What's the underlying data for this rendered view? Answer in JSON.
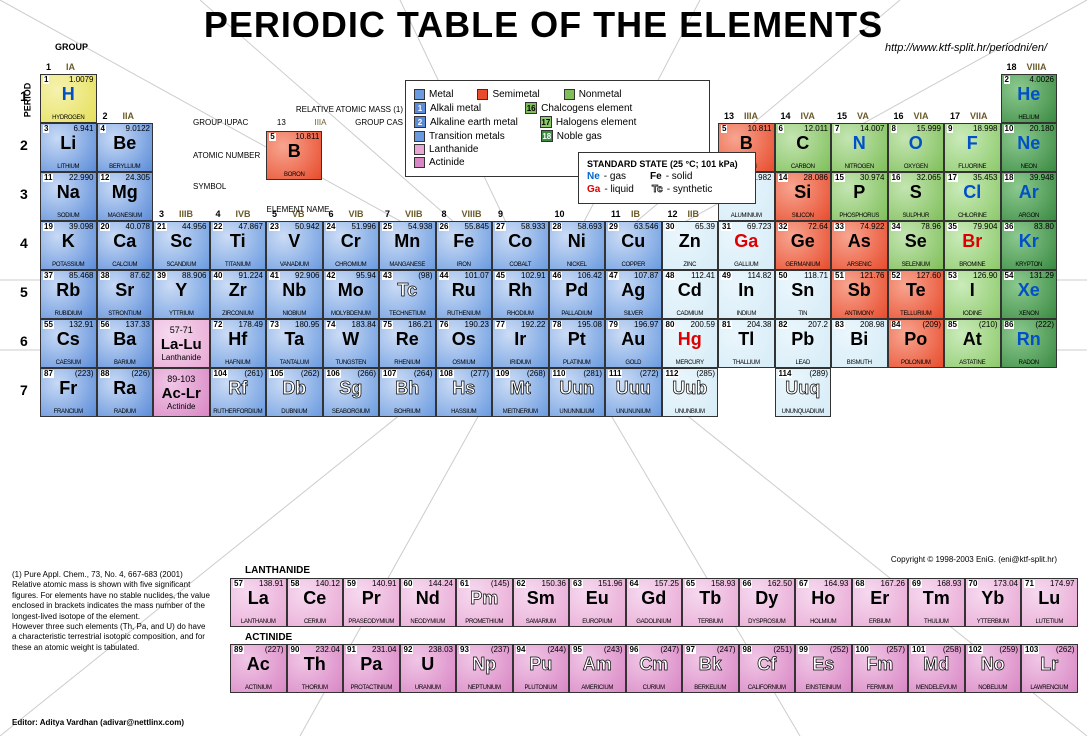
{
  "title": "PERIODIC TABLE OF THE ELEMENTS",
  "url": "http://www.ktf-split.hr/periodni/en/",
  "labels": {
    "group": "GROUP",
    "period": "PERIOD",
    "lanthanide_series": "LANTHANIDE",
    "actinide_series": "ACTINIDE",
    "relative_mass": "RELATIVE ATOMIC MASS (1)",
    "group_iupac": "GROUP IUPAC",
    "group_cas": "GROUP CAS",
    "atomic_number": "ATOMIC NUMBER",
    "symbol": "SYMBOL",
    "element_name": "ELEMENT NAME",
    "standard_state": "STANDARD STATE (25 °C; 101 kPa)",
    "gas": "- gas",
    "solid": "- solid",
    "liquid": "- liquid",
    "synthetic": "- synthetic"
  },
  "legend": {
    "metal": "Metal",
    "semimetal": "Semimetal",
    "nonmetal": "Nonmetal",
    "alkali": "Alkali metal",
    "alkaline": "Alkaline earth metal",
    "transition": "Transition metals",
    "chalcogens": "Chalcogens element",
    "halogens": "Halogens element",
    "noble": "Noble gas",
    "lanthanide": "Lanthanide",
    "actinide": "Actinide"
  },
  "state_samples": {
    "gas": "Ne",
    "solid": "Fe",
    "liquid": "Ga",
    "synth": "Tc"
  },
  "colors": {
    "alkali": "#5b8cd9",
    "alkali_light": "#a9c4ef",
    "transition": "#6a9be0",
    "transition_light": "#b8cef2",
    "post_transition": "#d6ecf7",
    "metalloid": "#e84c2d",
    "nonmetal": "#7fbf5a",
    "halogen": "#8cc96a",
    "noble": "#3a8a42",
    "lanth": "#e8a8d4",
    "act": "#d987c4",
    "hydrogen": "#e6e05a",
    "white": "#ffffff",
    "grid": "#cccccc"
  },
  "groups": [
    "IA",
    "IIA",
    "IIIB",
    "IVB",
    "VB",
    "VIB",
    "VIIB",
    "VIIIB",
    "",
    "",
    "IB",
    "IIB",
    "IIIA",
    "IVA",
    "VA",
    "VIA",
    "VIIA",
    "VIIIA"
  ],
  "cell_size": {
    "w": 56.5,
    "h": 49
  },
  "main_table": [
    {
      "n": 1,
      "m": "1.0079",
      "s": "H",
      "nm": "Hydrogen",
      "g": 1,
      "p": 1,
      "c": "hydrogen",
      "st": "g"
    },
    {
      "n": 2,
      "m": "4.0026",
      "s": "He",
      "nm": "Helium",
      "g": 18,
      "p": 1,
      "c": "noble",
      "st": "g"
    },
    {
      "n": 3,
      "m": "6.941",
      "s": "Li",
      "nm": "Lithium",
      "g": 1,
      "p": 2,
      "c": "alkali"
    },
    {
      "n": 4,
      "m": "9.0122",
      "s": "Be",
      "nm": "Beryllium",
      "g": 2,
      "p": 2,
      "c": "alkali"
    },
    {
      "n": 5,
      "m": "10.811",
      "s": "B",
      "nm": "Boron",
      "g": 13,
      "p": 2,
      "c": "metalloid"
    },
    {
      "n": 6,
      "m": "12.011",
      "s": "C",
      "nm": "Carbon",
      "g": 14,
      "p": 2,
      "c": "nonmetal"
    },
    {
      "n": 7,
      "m": "14.007",
      "s": "N",
      "nm": "Nitrogen",
      "g": 15,
      "p": 2,
      "c": "nonmetal",
      "st": "g"
    },
    {
      "n": 8,
      "m": "15.999",
      "s": "O",
      "nm": "Oxygen",
      "g": 16,
      "p": 2,
      "c": "nonmetal",
      "st": "g"
    },
    {
      "n": 9,
      "m": "18.998",
      "s": "F",
      "nm": "Fluorine",
      "g": 17,
      "p": 2,
      "c": "halogen",
      "st": "g"
    },
    {
      "n": 10,
      "m": "20.180",
      "s": "Ne",
      "nm": "Neon",
      "g": 18,
      "p": 2,
      "c": "noble",
      "st": "g"
    },
    {
      "n": 11,
      "m": "22.990",
      "s": "Na",
      "nm": "Sodium",
      "g": 1,
      "p": 3,
      "c": "alkali"
    },
    {
      "n": 12,
      "m": "24.305",
      "s": "Mg",
      "nm": "Magnesium",
      "g": 2,
      "p": 3,
      "c": "alkali"
    },
    {
      "n": 13,
      "m": "26.982",
      "s": "Al",
      "nm": "Aluminium",
      "g": 13,
      "p": 3,
      "c": "post_transition"
    },
    {
      "n": 14,
      "m": "28.086",
      "s": "Si",
      "nm": "Silicon",
      "g": 14,
      "p": 3,
      "c": "metalloid"
    },
    {
      "n": 15,
      "m": "30.974",
      "s": "P",
      "nm": "Phosphorus",
      "g": 15,
      "p": 3,
      "c": "nonmetal"
    },
    {
      "n": 16,
      "m": "32.065",
      "s": "S",
      "nm": "Sulphur",
      "g": 16,
      "p": 3,
      "c": "nonmetal"
    },
    {
      "n": 17,
      "m": "35.453",
      "s": "Cl",
      "nm": "Chlorine",
      "g": 17,
      "p": 3,
      "c": "halogen",
      "st": "g"
    },
    {
      "n": 18,
      "m": "39.948",
      "s": "Ar",
      "nm": "Argon",
      "g": 18,
      "p": 3,
      "c": "noble",
      "st": "g"
    },
    {
      "n": 19,
      "m": "39.098",
      "s": "K",
      "nm": "Potassium",
      "g": 1,
      "p": 4,
      "c": "alkali"
    },
    {
      "n": 20,
      "m": "40.078",
      "s": "Ca",
      "nm": "Calcium",
      "g": 2,
      "p": 4,
      "c": "alkali"
    },
    {
      "n": 21,
      "m": "44.956",
      "s": "Sc",
      "nm": "Scandium",
      "g": 3,
      "p": 4,
      "c": "transition"
    },
    {
      "n": 22,
      "m": "47.867",
      "s": "Ti",
      "nm": "Titanium",
      "g": 4,
      "p": 4,
      "c": "transition"
    },
    {
      "n": 23,
      "m": "50.942",
      "s": "V",
      "nm": "Vanadium",
      "g": 5,
      "p": 4,
      "c": "transition"
    },
    {
      "n": 24,
      "m": "51.996",
      "s": "Cr",
      "nm": "Chromium",
      "g": 6,
      "p": 4,
      "c": "transition"
    },
    {
      "n": 25,
      "m": "54.938",
      "s": "Mn",
      "nm": "Manganese",
      "g": 7,
      "p": 4,
      "c": "transition"
    },
    {
      "n": 26,
      "m": "55.845",
      "s": "Fe",
      "nm": "Iron",
      "g": 8,
      "p": 4,
      "c": "transition"
    },
    {
      "n": 27,
      "m": "58.933",
      "s": "Co",
      "nm": "Cobalt",
      "g": 9,
      "p": 4,
      "c": "transition"
    },
    {
      "n": 28,
      "m": "58.693",
      "s": "Ni",
      "nm": "Nickel",
      "g": 10,
      "p": 4,
      "c": "transition"
    },
    {
      "n": 29,
      "m": "63.546",
      "s": "Cu",
      "nm": "Copper",
      "g": 11,
      "p": 4,
      "c": "transition"
    },
    {
      "n": 30,
      "m": "65.39",
      "s": "Zn",
      "nm": "Zinc",
      "g": 12,
      "p": 4,
      "c": "post_transition"
    },
    {
      "n": 31,
      "m": "69.723",
      "s": "Ga",
      "nm": "Gallium",
      "g": 13,
      "p": 4,
      "c": "post_transition",
      "st": "l"
    },
    {
      "n": 32,
      "m": "72.64",
      "s": "Ge",
      "nm": "Germanium",
      "g": 14,
      "p": 4,
      "c": "metalloid"
    },
    {
      "n": 33,
      "m": "74.922",
      "s": "As",
      "nm": "Arsenic",
      "g": 15,
      "p": 4,
      "c": "metalloid"
    },
    {
      "n": 34,
      "m": "78.96",
      "s": "Se",
      "nm": "Selenium",
      "g": 16,
      "p": 4,
      "c": "nonmetal"
    },
    {
      "n": 35,
      "m": "79.904",
      "s": "Br",
      "nm": "Bromine",
      "g": 17,
      "p": 4,
      "c": "halogen",
      "st": "l"
    },
    {
      "n": 36,
      "m": "83.80",
      "s": "Kr",
      "nm": "Krypton",
      "g": 18,
      "p": 4,
      "c": "noble",
      "st": "g"
    },
    {
      "n": 37,
      "m": "85.468",
      "s": "Rb",
      "nm": "Rubidium",
      "g": 1,
      "p": 5,
      "c": "alkali"
    },
    {
      "n": 38,
      "m": "87.62",
      "s": "Sr",
      "nm": "Strontium",
      "g": 2,
      "p": 5,
      "c": "alkali"
    },
    {
      "n": 39,
      "m": "88.906",
      "s": "Y",
      "nm": "Yttrium",
      "g": 3,
      "p": 5,
      "c": "transition"
    },
    {
      "n": 40,
      "m": "91.224",
      "s": "Zr",
      "nm": "Zirconium",
      "g": 4,
      "p": 5,
      "c": "transition"
    },
    {
      "n": 41,
      "m": "92.906",
      "s": "Nb",
      "nm": "Niobium",
      "g": 5,
      "p": 5,
      "c": "transition"
    },
    {
      "n": 42,
      "m": "95.94",
      "s": "Mo",
      "nm": "Molybdenum",
      "g": 6,
      "p": 5,
      "c": "transition"
    },
    {
      "n": 43,
      "m": "(98)",
      "s": "Tc",
      "nm": "Technetium",
      "g": 7,
      "p": 5,
      "c": "transition",
      "st": "s"
    },
    {
      "n": 44,
      "m": "101.07",
      "s": "Ru",
      "nm": "Ruthenium",
      "g": 8,
      "p": 5,
      "c": "transition"
    },
    {
      "n": 45,
      "m": "102.91",
      "s": "Rh",
      "nm": "Rhodium",
      "g": 9,
      "p": 5,
      "c": "transition"
    },
    {
      "n": 46,
      "m": "106.42",
      "s": "Pd",
      "nm": "Palladium",
      "g": 10,
      "p": 5,
      "c": "transition"
    },
    {
      "n": 47,
      "m": "107.87",
      "s": "Ag",
      "nm": "Silver",
      "g": 11,
      "p": 5,
      "c": "transition"
    },
    {
      "n": 48,
      "m": "112.41",
      "s": "Cd",
      "nm": "Cadmium",
      "g": 12,
      "p": 5,
      "c": "post_transition"
    },
    {
      "n": 49,
      "m": "114.82",
      "s": "In",
      "nm": "Indium",
      "g": 13,
      "p": 5,
      "c": "post_transition"
    },
    {
      "n": 50,
      "m": "118.71",
      "s": "Sn",
      "nm": "Tin",
      "g": 14,
      "p": 5,
      "c": "post_transition"
    },
    {
      "n": 51,
      "m": "121.76",
      "s": "Sb",
      "nm": "Antimony",
      "g": 15,
      "p": 5,
      "c": "metalloid"
    },
    {
      "n": 52,
      "m": "127.60",
      "s": "Te",
      "nm": "Tellurium",
      "g": 16,
      "p": 5,
      "c": "metalloid"
    },
    {
      "n": 53,
      "m": "126.90",
      "s": "I",
      "nm": "Iodine",
      "g": 17,
      "p": 5,
      "c": "halogen"
    },
    {
      "n": 54,
      "m": "131.29",
      "s": "Xe",
      "nm": "Xenon",
      "g": 18,
      "p": 5,
      "c": "noble",
      "st": "g"
    },
    {
      "n": 55,
      "m": "132.91",
      "s": "Cs",
      "nm": "Caesium",
      "g": 1,
      "p": 6,
      "c": "alkali"
    },
    {
      "n": 56,
      "m": "137.33",
      "s": "Ba",
      "nm": "Barium",
      "g": 2,
      "p": 6,
      "c": "alkali"
    },
    {
      "n": 72,
      "m": "178.49",
      "s": "Hf",
      "nm": "Hafnium",
      "g": 4,
      "p": 6,
      "c": "transition"
    },
    {
      "n": 73,
      "m": "180.95",
      "s": "Ta",
      "nm": "Tantalum",
      "g": 5,
      "p": 6,
      "c": "transition"
    },
    {
      "n": 74,
      "m": "183.84",
      "s": "W",
      "nm": "Tungsten",
      "g": 6,
      "p": 6,
      "c": "transition"
    },
    {
      "n": 75,
      "m": "186.21",
      "s": "Re",
      "nm": "Rhenium",
      "g": 7,
      "p": 6,
      "c": "transition"
    },
    {
      "n": 76,
      "m": "190.23",
      "s": "Os",
      "nm": "Osmium",
      "g": 8,
      "p": 6,
      "c": "transition"
    },
    {
      "n": 77,
      "m": "192.22",
      "s": "Ir",
      "nm": "Iridium",
      "g": 9,
      "p": 6,
      "c": "transition"
    },
    {
      "n": 78,
      "m": "195.08",
      "s": "Pt",
      "nm": "Platinum",
      "g": 10,
      "p": 6,
      "c": "transition"
    },
    {
      "n": 79,
      "m": "196.97",
      "s": "Au",
      "nm": "Gold",
      "g": 11,
      "p": 6,
      "c": "transition"
    },
    {
      "n": 80,
      "m": "200.59",
      "s": "Hg",
      "nm": "Mercury",
      "g": 12,
      "p": 6,
      "c": "post_transition",
      "st": "l"
    },
    {
      "n": 81,
      "m": "204.38",
      "s": "Tl",
      "nm": "Thallium",
      "g": 13,
      "p": 6,
      "c": "post_transition"
    },
    {
      "n": 82,
      "m": "207.2",
      "s": "Pb",
      "nm": "Lead",
      "g": 14,
      "p": 6,
      "c": "post_transition"
    },
    {
      "n": 83,
      "m": "208.98",
      "s": "Bi",
      "nm": "Bismuth",
      "g": 15,
      "p": 6,
      "c": "post_transition"
    },
    {
      "n": 84,
      "m": "(209)",
      "s": "Po",
      "nm": "Polonium",
      "g": 16,
      "p": 6,
      "c": "metalloid"
    },
    {
      "n": 85,
      "m": "(210)",
      "s": "At",
      "nm": "Astatine",
      "g": 17,
      "p": 6,
      "c": "halogen"
    },
    {
      "n": 86,
      "m": "(222)",
      "s": "Rn",
      "nm": "Radon",
      "g": 18,
      "p": 6,
      "c": "noble",
      "st": "g"
    },
    {
      "n": 87,
      "m": "(223)",
      "s": "Fr",
      "nm": "Francium",
      "g": 1,
      "p": 7,
      "c": "alkali"
    },
    {
      "n": 88,
      "m": "(226)",
      "s": "Ra",
      "nm": "Radium",
      "g": 2,
      "p": 7,
      "c": "alkali"
    },
    {
      "n": 104,
      "m": "(261)",
      "s": "Rf",
      "nm": "Rutherfordium",
      "g": 4,
      "p": 7,
      "c": "transition",
      "st": "s"
    },
    {
      "n": 105,
      "m": "(262)",
      "s": "Db",
      "nm": "Dubnium",
      "g": 5,
      "p": 7,
      "c": "transition",
      "st": "s"
    },
    {
      "n": 106,
      "m": "(266)",
      "s": "Sg",
      "nm": "Seaborgium",
      "g": 6,
      "p": 7,
      "c": "transition",
      "st": "s"
    },
    {
      "n": 107,
      "m": "(264)",
      "s": "Bh",
      "nm": "Bohrium",
      "g": 7,
      "p": 7,
      "c": "transition",
      "st": "s"
    },
    {
      "n": 108,
      "m": "(277)",
      "s": "Hs",
      "nm": "Hassium",
      "g": 8,
      "p": 7,
      "c": "transition",
      "st": "s"
    },
    {
      "n": 109,
      "m": "(268)",
      "s": "Mt",
      "nm": "Meitnerium",
      "g": 9,
      "p": 7,
      "c": "transition",
      "st": "s"
    },
    {
      "n": 110,
      "m": "(281)",
      "s": "Uun",
      "nm": "Ununnilium",
      "g": 10,
      "p": 7,
      "c": "transition",
      "st": "s"
    },
    {
      "n": 111,
      "m": "(272)",
      "s": "Uuu",
      "nm": "Unununium",
      "g": 11,
      "p": 7,
      "c": "transition",
      "st": "s"
    },
    {
      "n": 112,
      "m": "(285)",
      "s": "Uub",
      "nm": "Ununbium",
      "g": 12,
      "p": 7,
      "c": "post_transition",
      "st": "s"
    },
    {
      "n": 114,
      "m": "(289)",
      "s": "Uuq",
      "nm": "Ununquadium",
      "g": 14,
      "p": 7,
      "c": "post_transition",
      "st": "s"
    }
  ],
  "series_placeholders": [
    {
      "p": 6,
      "g": 3,
      "range": "57-71",
      "sy": "La-Lu",
      "nm": "Lanthanide",
      "c": "lanth"
    },
    {
      "p": 7,
      "g": 3,
      "range": "89-103",
      "sy": "Ac-Lr",
      "nm": "Actinide",
      "c": "act"
    }
  ],
  "lanthanides": [
    {
      "n": 57,
      "m": "138.91",
      "s": "La",
      "nm": "Lanthanum"
    },
    {
      "n": 58,
      "m": "140.12",
      "s": "Ce",
      "nm": "Cerium"
    },
    {
      "n": 59,
      "m": "140.91",
      "s": "Pr",
      "nm": "Praseodymium"
    },
    {
      "n": 60,
      "m": "144.24",
      "s": "Nd",
      "nm": "Neodymium"
    },
    {
      "n": 61,
      "m": "(145)",
      "s": "Pm",
      "nm": "Promethium",
      "st": "s"
    },
    {
      "n": 62,
      "m": "150.36",
      "s": "Sm",
      "nm": "Samarium"
    },
    {
      "n": 63,
      "m": "151.96",
      "s": "Eu",
      "nm": "Europium"
    },
    {
      "n": 64,
      "m": "157.25",
      "s": "Gd",
      "nm": "Gadolinium"
    },
    {
      "n": 65,
      "m": "158.93",
      "s": "Tb",
      "nm": "Terbium"
    },
    {
      "n": 66,
      "m": "162.50",
      "s": "Dy",
      "nm": "Dysprosium"
    },
    {
      "n": 67,
      "m": "164.93",
      "s": "Ho",
      "nm": "Holmium"
    },
    {
      "n": 68,
      "m": "167.26",
      "s": "Er",
      "nm": "Erbium"
    },
    {
      "n": 69,
      "m": "168.93",
      "s": "Tm",
      "nm": "Thulium"
    },
    {
      "n": 70,
      "m": "173.04",
      "s": "Yb",
      "nm": "Ytterbium"
    },
    {
      "n": 71,
      "m": "174.97",
      "s": "Lu",
      "nm": "Lutetium"
    }
  ],
  "actinides": [
    {
      "n": 89,
      "m": "(227)",
      "s": "Ac",
      "nm": "Actinium"
    },
    {
      "n": 90,
      "m": "232.04",
      "s": "Th",
      "nm": "Thorium"
    },
    {
      "n": 91,
      "m": "231.04",
      "s": "Pa",
      "nm": "Protactinium"
    },
    {
      "n": 92,
      "m": "238.03",
      "s": "U",
      "nm": "Uranium"
    },
    {
      "n": 93,
      "m": "(237)",
      "s": "Np",
      "nm": "Neptunium",
      "st": "s"
    },
    {
      "n": 94,
      "m": "(244)",
      "s": "Pu",
      "nm": "Plutonium",
      "st": "s"
    },
    {
      "n": 95,
      "m": "(243)",
      "s": "Am",
      "nm": "Americium",
      "st": "s"
    },
    {
      "n": 96,
      "m": "(247)",
      "s": "Cm",
      "nm": "Curium",
      "st": "s"
    },
    {
      "n": 97,
      "m": "(247)",
      "s": "Bk",
      "nm": "Berkelium",
      "st": "s"
    },
    {
      "n": 98,
      "m": "(251)",
      "s": "Cf",
      "nm": "Californium",
      "st": "s"
    },
    {
      "n": 99,
      "m": "(252)",
      "s": "Es",
      "nm": "Einsteinium",
      "st": "s"
    },
    {
      "n": 100,
      "m": "(257)",
      "s": "Fm",
      "nm": "Fermium",
      "st": "s"
    },
    {
      "n": 101,
      "m": "(258)",
      "s": "Md",
      "nm": "Mendelevium",
      "st": "s"
    },
    {
      "n": 102,
      "m": "(259)",
      "s": "No",
      "nm": "Nobelium",
      "st": "s"
    },
    {
      "n": 103,
      "m": "(262)",
      "s": "Lr",
      "nm": "Lawrencium",
      "st": "s"
    }
  ],
  "guide_cell": {
    "n": 5,
    "m": "10.811",
    "s": "B",
    "nm": "Boron",
    "c": "metalloid"
  },
  "footnote": "(1) Pure Appl. Chem., 73, No. 4, 667-683 (2001)\nRelative atomic mass is shown with five significant figures. For elements have no stable nuclides, the value enclosed in brackets indicates the mass number of the longest-lived isotope of the element.\nHowever three such elements (Th, Pa, and U) do have a characteristic terrestrial isotopic composition, and for these an atomic weight is tabulated.",
  "editor": "Editor: Aditya Vardhan (adivar@nettlinx.com)",
  "copyright": "Copyright © 1998-2003 EniG. (eni@ktf-split.hr)"
}
